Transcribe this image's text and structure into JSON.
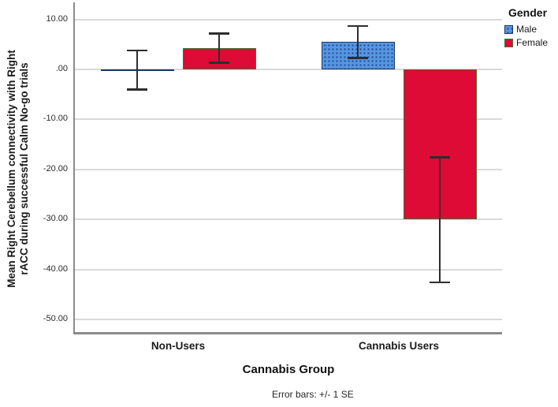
{
  "chart_data": {
    "type": "bar",
    "categories": [
      "Non-Users",
      "Cannabis Users"
    ],
    "series": [
      {
        "name": "Male",
        "values": [
          -0.1,
          5.5
        ],
        "se": [
          3.9,
          3.2
        ],
        "color": "#5796e0",
        "dot_color": "#2d5fa8",
        "border": "#1b3766",
        "pattern": "dots"
      },
      {
        "name": "Female",
        "values": [
          4.3,
          -30.0
        ],
        "se": [
          2.95,
          12.5
        ],
        "color": "#dd0b35",
        "border": "#456f2e",
        "pattern": "solid"
      }
    ],
    "ylabel": "Mean Right Cerebellum connectivity with Right rACC during successful Calm No-go trials",
    "ylabel_lines": [
      "Mean Right Cerebellum connectivity with Right",
      "rACC during successful Calm No-go trials"
    ],
    "xlabel": "Cannabis Group",
    "yticks": [
      10,
      0,
      -10,
      -20,
      -30,
      -40,
      -50
    ],
    "ytick_labels": [
      "10.00",
      ".00",
      "-10.00",
      "-20.00",
      "-30.00",
      "-40.00",
      "-50.00"
    ],
    "ylim": [
      -52.8,
      13.4
    ],
    "grid": true,
    "legend_title": "Gender",
    "legend_position": "top-right",
    "error_note": "Error bars: +/- 1 SE",
    "error_bar_color": "#2e2e2e",
    "gridline_color": "#d9d9d9",
    "axis_color": "#8a8a8a"
  }
}
